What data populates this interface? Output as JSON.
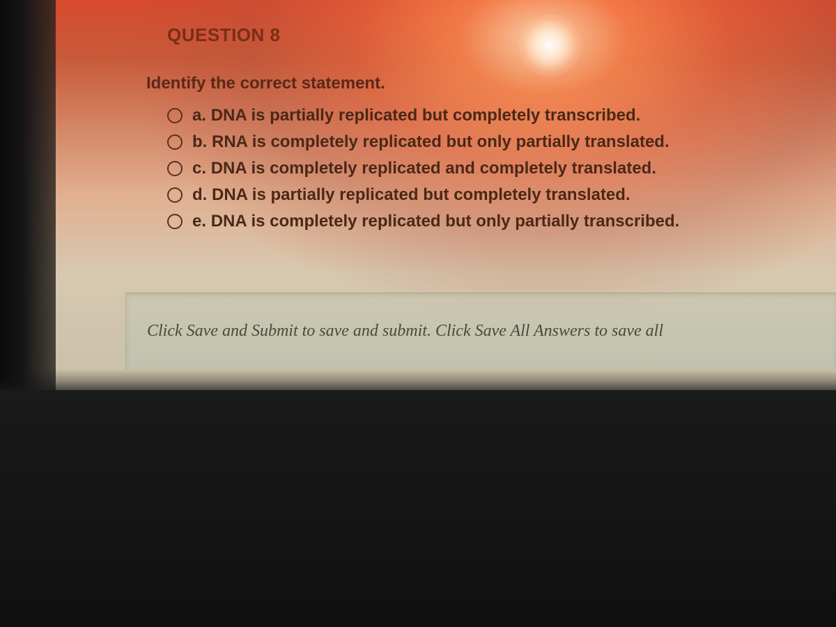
{
  "question": {
    "header": "QUESTION 8",
    "prompt": "Identify the correct statement.",
    "options": [
      {
        "letter": "a.",
        "text": "DNA is partially replicated but completely transcribed."
      },
      {
        "letter": "b.",
        "text": "RNA is completely replicated but only partially translated."
      },
      {
        "letter": "c.",
        "text": "DNA is completely replicated and completely translated."
      },
      {
        "letter": "d.",
        "text": "DNA is partially replicated but completely translated."
      },
      {
        "letter": "e.",
        "text": "DNA is completely replicated but only partially transcribed."
      }
    ]
  },
  "footer": {
    "instruction": "Click Save and Submit to save and submit. Click Save All Answers to save all"
  },
  "styling": {
    "header_color": "#7a2e15",
    "prompt_color": "#5a2818",
    "option_color": "#4a2818",
    "footer_text_color": "#4a4a3a",
    "radio_border_color": "#5a3020",
    "header_fontsize": 26,
    "prompt_fontsize": 24,
    "option_fontsize": 24,
    "footer_fontsize": 24
  }
}
